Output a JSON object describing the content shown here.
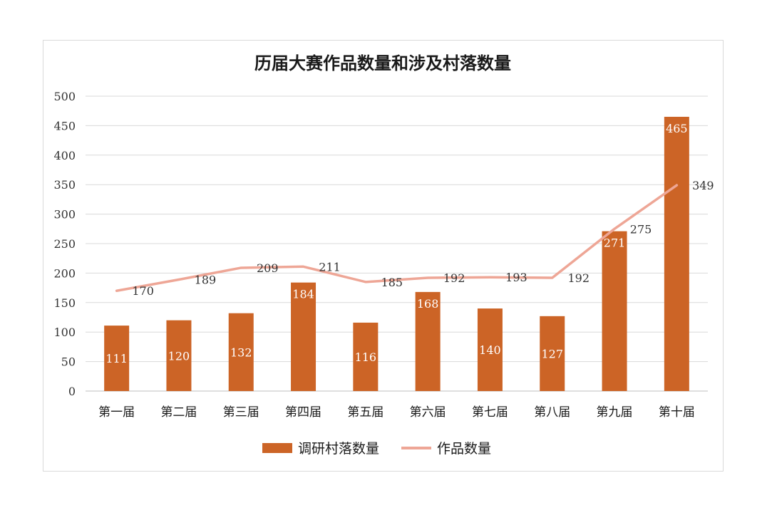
{
  "chart_data": {
    "type": "bar",
    "title": "历届大赛作品数量和涉及村落数量",
    "categories": [
      "第一届",
      "第二届",
      "第三届",
      "第四届",
      "第五届",
      "第六届",
      "第七届",
      "第八届",
      "第九届",
      "第十届"
    ],
    "series": [
      {
        "name": "调研村落数量",
        "type": "bar",
        "color": "#cc6426",
        "values": [
          111,
          120,
          132,
          184,
          116,
          168,
          140,
          127,
          271,
          465
        ]
      },
      {
        "name": "作品数量",
        "type": "line",
        "color": "#eea696",
        "values": [
          170,
          189,
          209,
          211,
          185,
          192,
          193,
          192,
          275,
          349
        ]
      }
    ],
    "ylim": [
      0,
      500
    ],
    "yticks": [
      0,
      50,
      100,
      150,
      200,
      250,
      300,
      350,
      400,
      450,
      500
    ],
    "grid": true,
    "legend": "bottom"
  }
}
